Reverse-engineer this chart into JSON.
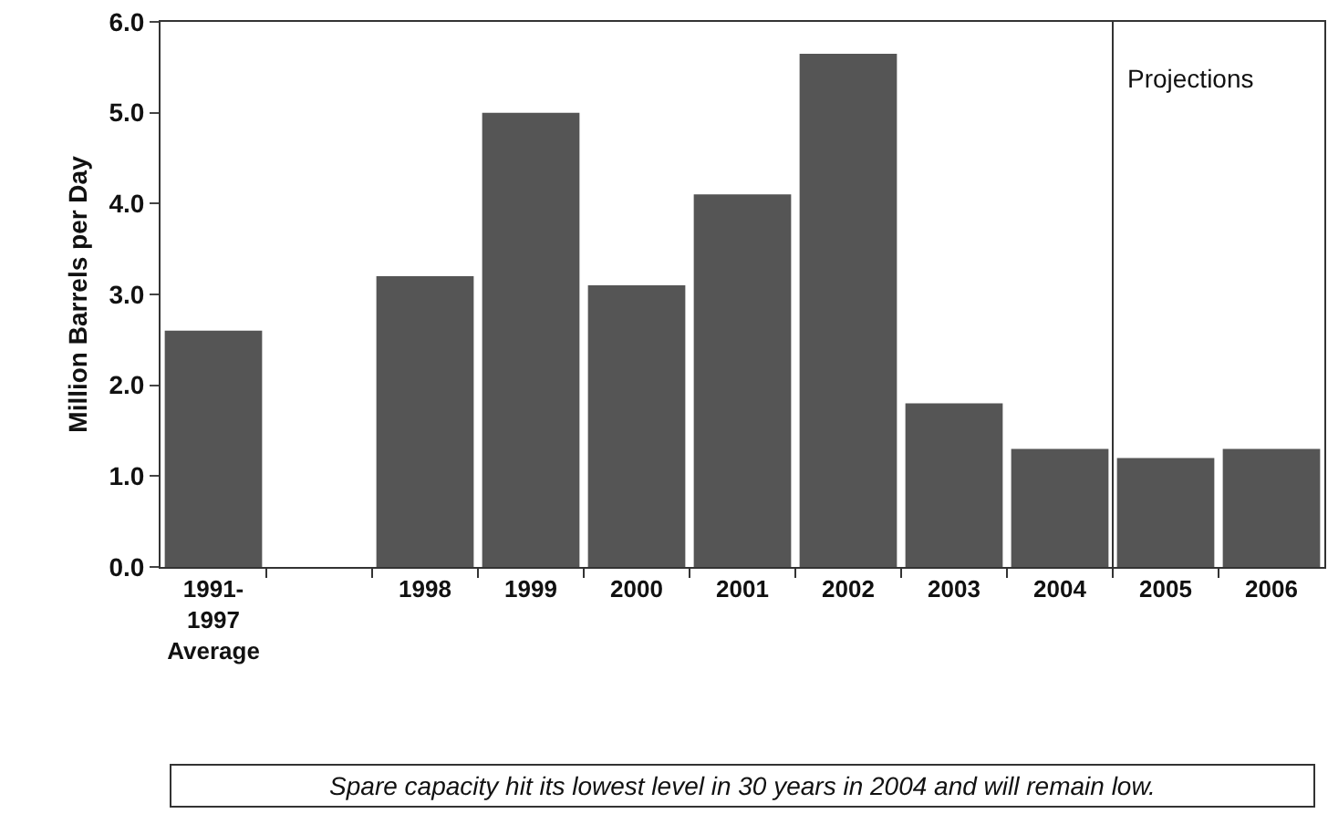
{
  "chart_data": {
    "type": "bar",
    "ylabel": "Million Barrels per Day",
    "categories": [
      "1991-\n1997\nAverage",
      null,
      "1998",
      "1999",
      "2000",
      "2001",
      "2002",
      "2003",
      "2004",
      "2005",
      "2006"
    ],
    "values": [
      2.6,
      null,
      3.2,
      5.0,
      3.1,
      4.1,
      5.65,
      1.8,
      1.3,
      1.2,
      1.3
    ],
    "color": "#555555",
    "ylim": [
      0,
      6
    ],
    "yticks": [
      {
        "value": 0,
        "label": "0.0"
      },
      {
        "value": 1,
        "label": "1.0"
      },
      {
        "value": 2,
        "label": "2.0"
      },
      {
        "value": 3,
        "label": "3.0"
      },
      {
        "value": 4,
        "label": "4.0"
      },
      {
        "value": 5,
        "label": "5.0"
      },
      {
        "value": 6,
        "label": "6.0"
      }
    ],
    "grid": false,
    "annotations": [
      "Projections",
      "Spare capacity hit its lowest level in 30 years in 2004 and will remain low."
    ]
  }
}
